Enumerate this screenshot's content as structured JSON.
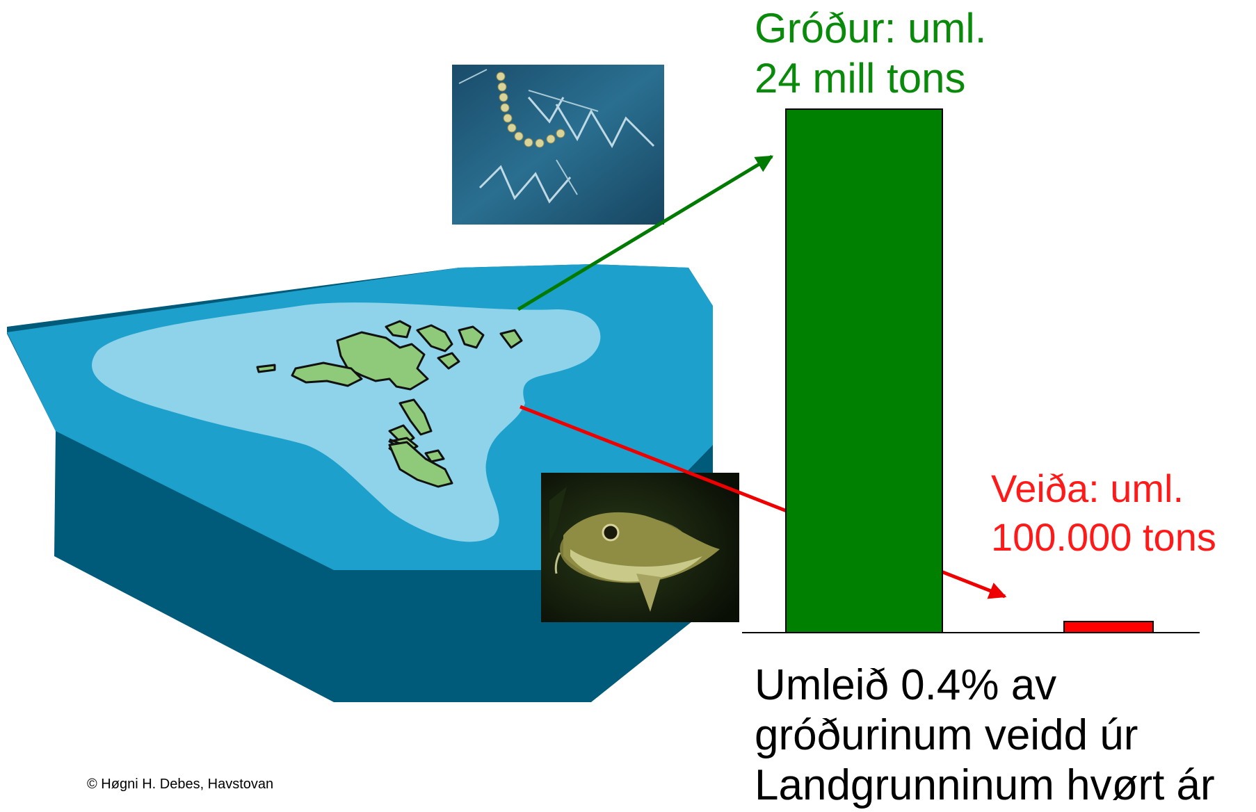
{
  "chart_data": {
    "type": "bar",
    "categories": [
      "Gróður",
      "Veiða"
    ],
    "values": [
      24000000,
      100000
    ],
    "colors": [
      "#008000",
      "#ff0000"
    ],
    "ylim": [
      0,
      24000000
    ]
  },
  "labels": {
    "grodur_line1": "Gróður: uml.",
    "grodur_line2": "24 mill tons",
    "veida_line1": "Veiða: uml.",
    "veida_line2": "100.000 tons"
  },
  "summary": {
    "line1": "Umleið 0.4% av",
    "line2": "gróðurinum veidd úr",
    "line3": "Landgrunninum hvørt ár"
  },
  "credit": "© Høgni H. Debes, Havstovan",
  "colors": {
    "green_label": "#0a8a0a",
    "red_label": "#ff1a1a",
    "shelf_deep": "#005a7a",
    "shelf_top": "#1ea0cc",
    "shelf_light": "#8fd3ea",
    "land": "#8fc97a"
  },
  "icons": {
    "plankton": "plankton-photo",
    "fish": "cod-photo",
    "islands": "faroe-islands-map"
  }
}
